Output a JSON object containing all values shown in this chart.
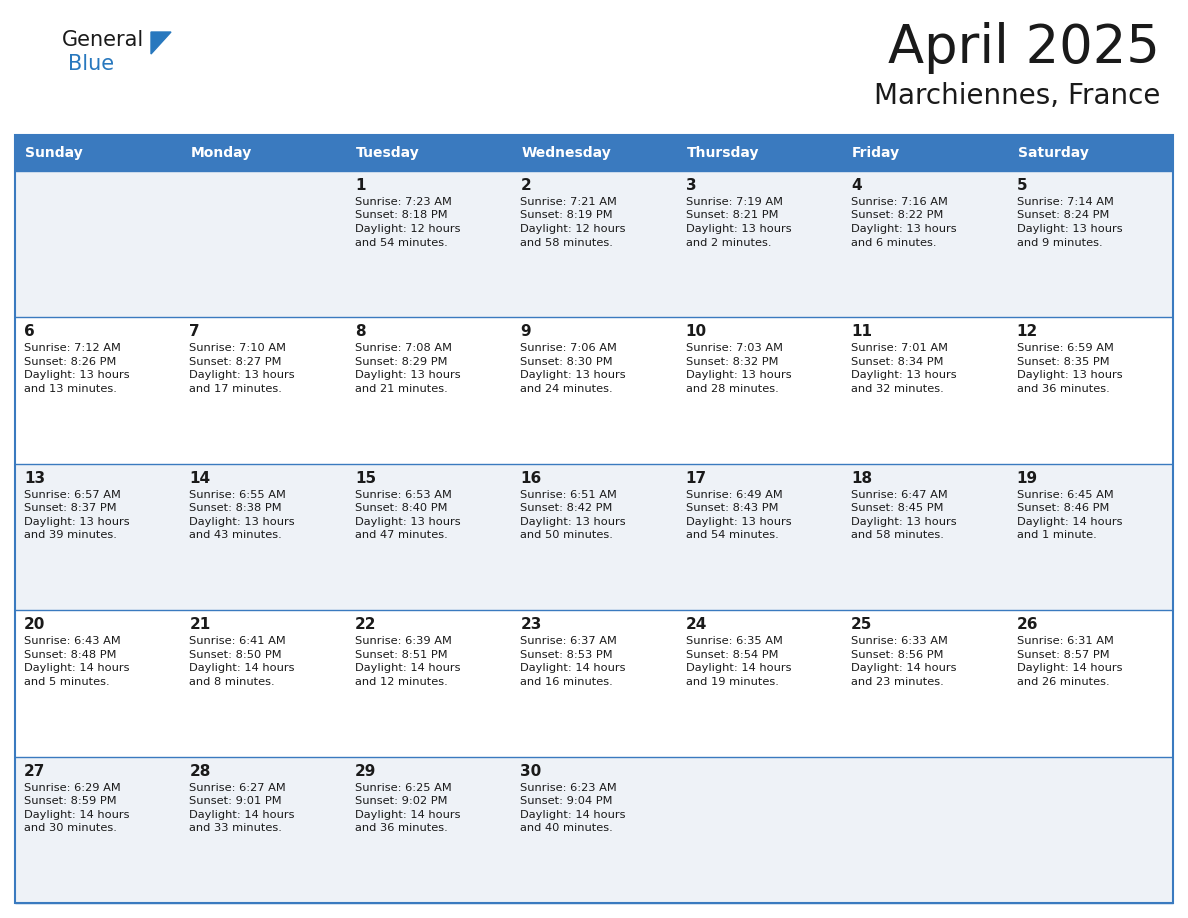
{
  "title": "April 2025",
  "subtitle": "Marchiennes, France",
  "header_bg": "#3a7abf",
  "header_text": "#ffffff",
  "cell_bg_light": "#eef2f7",
  "cell_bg_white": "#ffffff",
  "row_line_color": "#3a7abf",
  "text_color": "#1a1a1a",
  "days_of_week": [
    "Sunday",
    "Monday",
    "Tuesday",
    "Wednesday",
    "Thursday",
    "Friday",
    "Saturday"
  ],
  "calendar_data": [
    [
      {
        "day": "",
        "lines": []
      },
      {
        "day": "",
        "lines": []
      },
      {
        "day": "1",
        "lines": [
          "Sunrise: 7:23 AM",
          "Sunset: 8:18 PM",
          "Daylight: 12 hours",
          "and 54 minutes."
        ]
      },
      {
        "day": "2",
        "lines": [
          "Sunrise: 7:21 AM",
          "Sunset: 8:19 PM",
          "Daylight: 12 hours",
          "and 58 minutes."
        ]
      },
      {
        "day": "3",
        "lines": [
          "Sunrise: 7:19 AM",
          "Sunset: 8:21 PM",
          "Daylight: 13 hours",
          "and 2 minutes."
        ]
      },
      {
        "day": "4",
        "lines": [
          "Sunrise: 7:16 AM",
          "Sunset: 8:22 PM",
          "Daylight: 13 hours",
          "and 6 minutes."
        ]
      },
      {
        "day": "5",
        "lines": [
          "Sunrise: 7:14 AM",
          "Sunset: 8:24 PM",
          "Daylight: 13 hours",
          "and 9 minutes."
        ]
      }
    ],
    [
      {
        "day": "6",
        "lines": [
          "Sunrise: 7:12 AM",
          "Sunset: 8:26 PM",
          "Daylight: 13 hours",
          "and 13 minutes."
        ]
      },
      {
        "day": "7",
        "lines": [
          "Sunrise: 7:10 AM",
          "Sunset: 8:27 PM",
          "Daylight: 13 hours",
          "and 17 minutes."
        ]
      },
      {
        "day": "8",
        "lines": [
          "Sunrise: 7:08 AM",
          "Sunset: 8:29 PM",
          "Daylight: 13 hours",
          "and 21 minutes."
        ]
      },
      {
        "day": "9",
        "lines": [
          "Sunrise: 7:06 AM",
          "Sunset: 8:30 PM",
          "Daylight: 13 hours",
          "and 24 minutes."
        ]
      },
      {
        "day": "10",
        "lines": [
          "Sunrise: 7:03 AM",
          "Sunset: 8:32 PM",
          "Daylight: 13 hours",
          "and 28 minutes."
        ]
      },
      {
        "day": "11",
        "lines": [
          "Sunrise: 7:01 AM",
          "Sunset: 8:34 PM",
          "Daylight: 13 hours",
          "and 32 minutes."
        ]
      },
      {
        "day": "12",
        "lines": [
          "Sunrise: 6:59 AM",
          "Sunset: 8:35 PM",
          "Daylight: 13 hours",
          "and 36 minutes."
        ]
      }
    ],
    [
      {
        "day": "13",
        "lines": [
          "Sunrise: 6:57 AM",
          "Sunset: 8:37 PM",
          "Daylight: 13 hours",
          "and 39 minutes."
        ]
      },
      {
        "day": "14",
        "lines": [
          "Sunrise: 6:55 AM",
          "Sunset: 8:38 PM",
          "Daylight: 13 hours",
          "and 43 minutes."
        ]
      },
      {
        "day": "15",
        "lines": [
          "Sunrise: 6:53 AM",
          "Sunset: 8:40 PM",
          "Daylight: 13 hours",
          "and 47 minutes."
        ]
      },
      {
        "day": "16",
        "lines": [
          "Sunrise: 6:51 AM",
          "Sunset: 8:42 PM",
          "Daylight: 13 hours",
          "and 50 minutes."
        ]
      },
      {
        "day": "17",
        "lines": [
          "Sunrise: 6:49 AM",
          "Sunset: 8:43 PM",
          "Daylight: 13 hours",
          "and 54 minutes."
        ]
      },
      {
        "day": "18",
        "lines": [
          "Sunrise: 6:47 AM",
          "Sunset: 8:45 PM",
          "Daylight: 13 hours",
          "and 58 minutes."
        ]
      },
      {
        "day": "19",
        "lines": [
          "Sunrise: 6:45 AM",
          "Sunset: 8:46 PM",
          "Daylight: 14 hours",
          "and 1 minute."
        ]
      }
    ],
    [
      {
        "day": "20",
        "lines": [
          "Sunrise: 6:43 AM",
          "Sunset: 8:48 PM",
          "Daylight: 14 hours",
          "and 5 minutes."
        ]
      },
      {
        "day": "21",
        "lines": [
          "Sunrise: 6:41 AM",
          "Sunset: 8:50 PM",
          "Daylight: 14 hours",
          "and 8 minutes."
        ]
      },
      {
        "day": "22",
        "lines": [
          "Sunrise: 6:39 AM",
          "Sunset: 8:51 PM",
          "Daylight: 14 hours",
          "and 12 minutes."
        ]
      },
      {
        "day": "23",
        "lines": [
          "Sunrise: 6:37 AM",
          "Sunset: 8:53 PM",
          "Daylight: 14 hours",
          "and 16 minutes."
        ]
      },
      {
        "day": "24",
        "lines": [
          "Sunrise: 6:35 AM",
          "Sunset: 8:54 PM",
          "Daylight: 14 hours",
          "and 19 minutes."
        ]
      },
      {
        "day": "25",
        "lines": [
          "Sunrise: 6:33 AM",
          "Sunset: 8:56 PM",
          "Daylight: 14 hours",
          "and 23 minutes."
        ]
      },
      {
        "day": "26",
        "lines": [
          "Sunrise: 6:31 AM",
          "Sunset: 8:57 PM",
          "Daylight: 14 hours",
          "and 26 minutes."
        ]
      }
    ],
    [
      {
        "day": "27",
        "lines": [
          "Sunrise: 6:29 AM",
          "Sunset: 8:59 PM",
          "Daylight: 14 hours",
          "and 30 minutes."
        ]
      },
      {
        "day": "28",
        "lines": [
          "Sunrise: 6:27 AM",
          "Sunset: 9:01 PM",
          "Daylight: 14 hours",
          "and 33 minutes."
        ]
      },
      {
        "day": "29",
        "lines": [
          "Sunrise: 6:25 AM",
          "Sunset: 9:02 PM",
          "Daylight: 14 hours",
          "and 36 minutes."
        ]
      },
      {
        "day": "30",
        "lines": [
          "Sunrise: 6:23 AM",
          "Sunset: 9:04 PM",
          "Daylight: 14 hours",
          "and 40 minutes."
        ]
      },
      {
        "day": "",
        "lines": []
      },
      {
        "day": "",
        "lines": []
      },
      {
        "day": "",
        "lines": []
      }
    ]
  ]
}
